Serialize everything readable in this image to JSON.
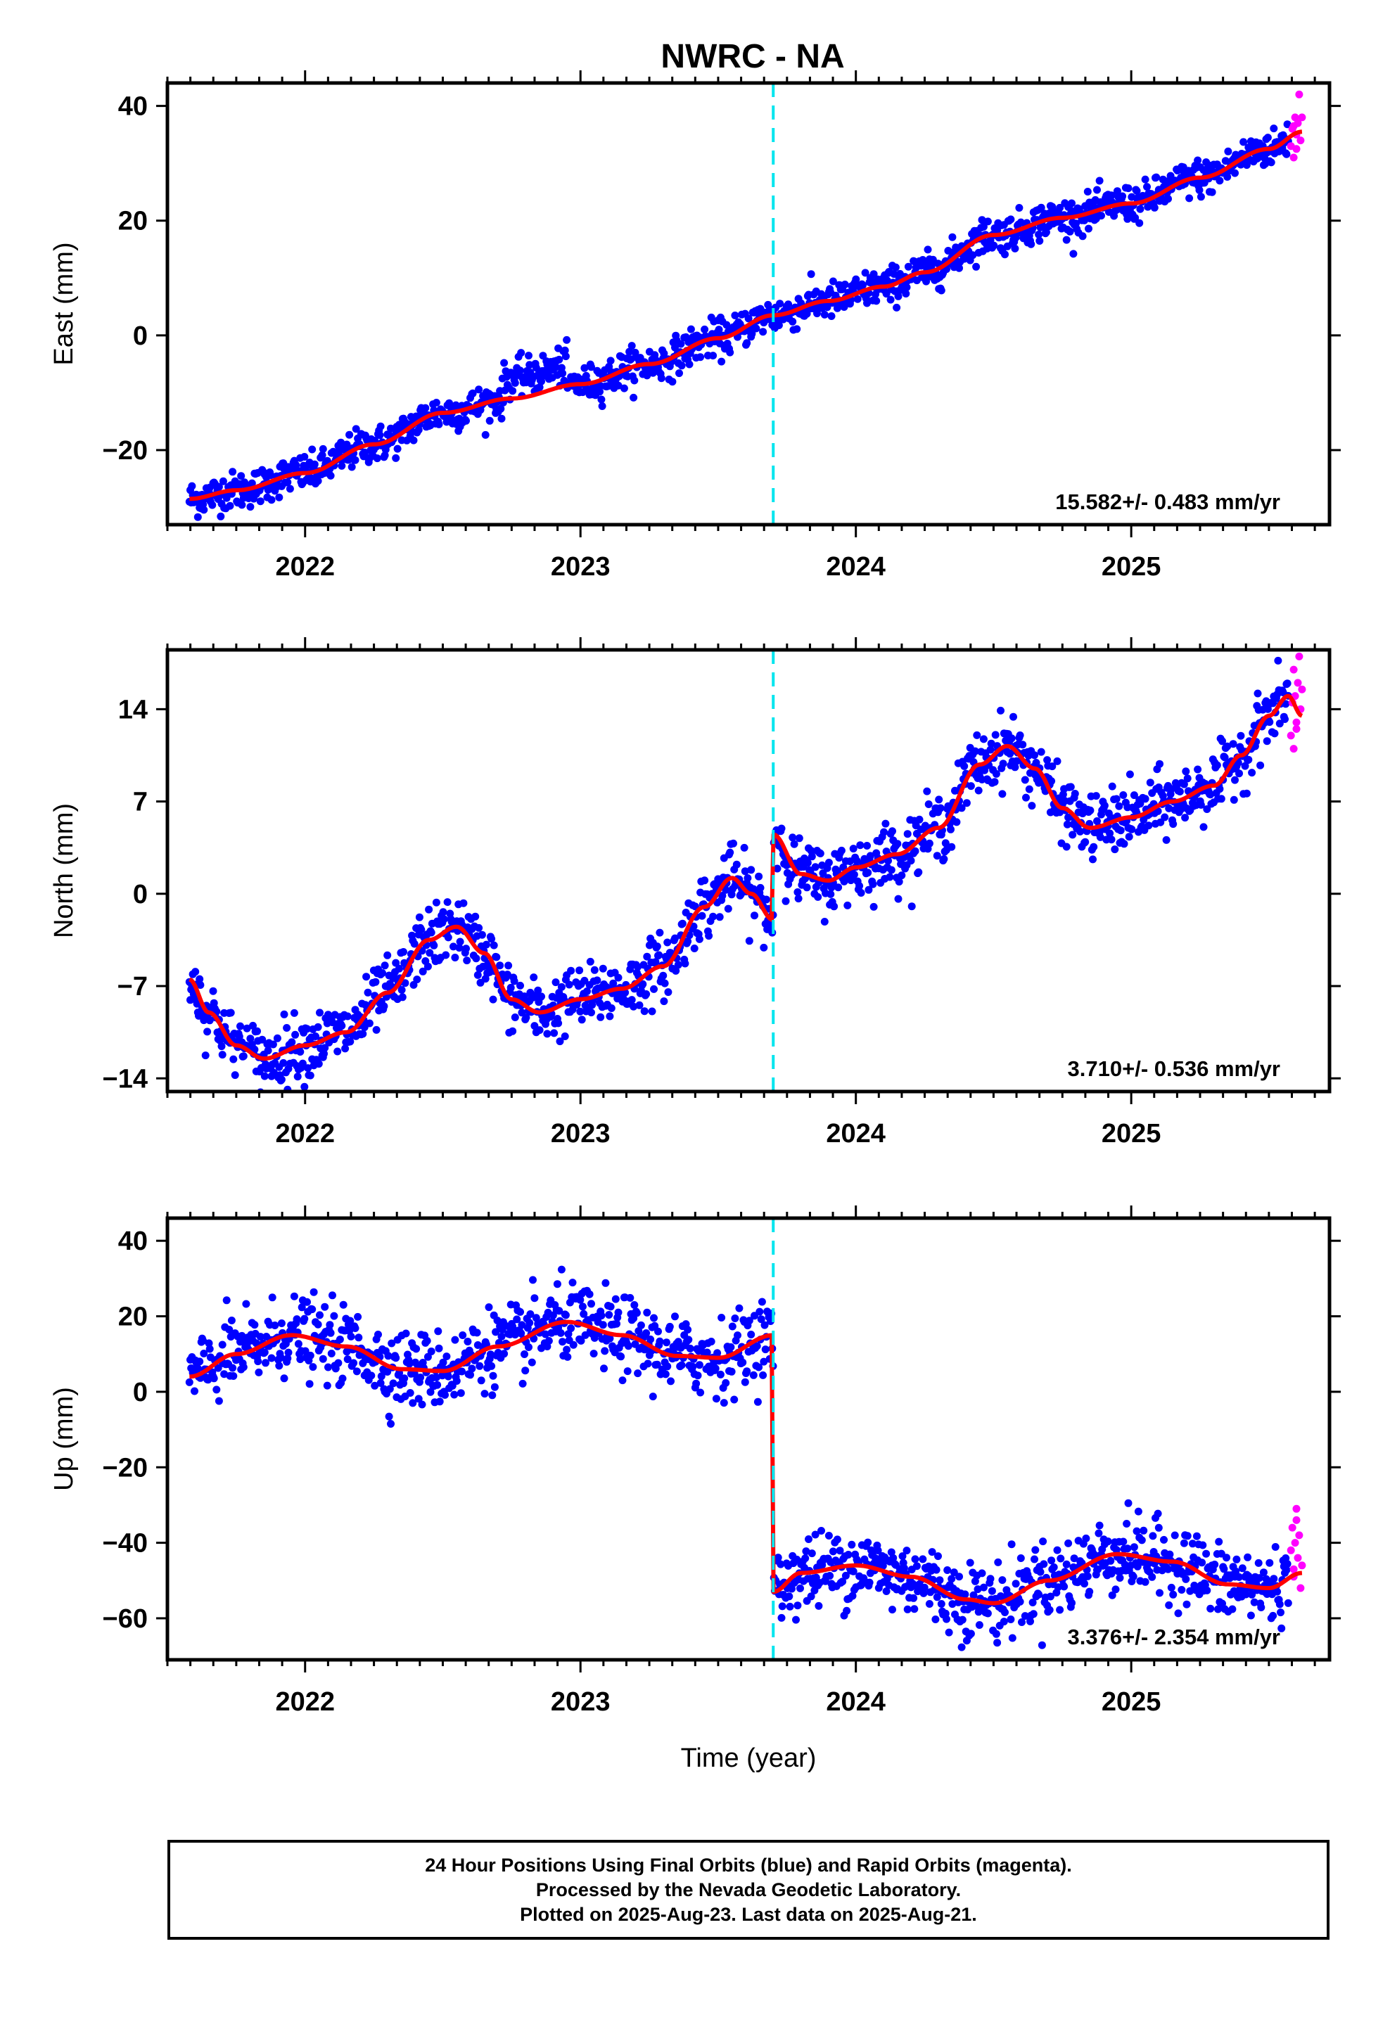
{
  "title": "NWRC - NA",
  "footer": {
    "line1": "24 Hour Positions Using Final Orbits (blue) and Rapid Orbits (magenta).",
    "line2": "Processed by the Nevada Geodetic Laboratory.",
    "line3": "Plotted on 2025-Aug-23. Last data on 2025-Aug-21."
  },
  "colors": {
    "final_orbits": "#0000ff",
    "rapid_orbits": "#ff00ff",
    "model_fit": "#ff0000",
    "equipment_change": "#00e5ee"
  },
  "chart_data": [
    {
      "type": "scatter",
      "name": "east",
      "ylabel": "East (mm)",
      "xlabel": "",
      "xlim": [
        2021.5,
        2025.72
      ],
      "ylim": [
        -33,
        44
      ],
      "xticks": [
        2022,
        2023,
        2024,
        2025
      ],
      "xtick_labels": [
        "2022",
        "2023",
        "2024",
        "2025"
      ],
      "yticks": [
        -20,
        0,
        20,
        40
      ],
      "ytick_labels": [
        "−20",
        "0",
        "20",
        "40"
      ],
      "rate_label": "15.582+/- 0.483 mm/yr",
      "equipment_change_x": 2023.7,
      "fit": {
        "x": [
          2021.58,
          2021.75,
          2022.0,
          2022.25,
          2022.5,
          2022.75,
          2023.0,
          2023.25,
          2023.5,
          2023.7,
          2023.9,
          2024.1,
          2024.25,
          2024.5,
          2024.75,
          2025.0,
          2025.25,
          2025.5,
          2025.62
        ],
        "y": [
          -28.5,
          -27,
          -24,
          -19,
          -13.5,
          -11,
          -8.5,
          -5,
          -0.5,
          3.5,
          6,
          8.5,
          11,
          17.5,
          20.5,
          23,
          27.5,
          32.5,
          35.5
        ]
      },
      "rapid": {
        "x": [
          2025.58,
          2025.585,
          2025.59,
          2025.595,
          2025.6,
          2025.605,
          2025.61,
          2025.615,
          2025.62,
          2025.6,
          2025.59
        ],
        "y": [
          33,
          36,
          31,
          38,
          35,
          37,
          42,
          34,
          38,
          32.5,
          36.5
        ]
      },
      "final": {
        "noise_mm": 1.6,
        "start": 2021.58,
        "end": 2025.57,
        "note_offset_2022_7": 4
      }
    },
    {
      "type": "scatter",
      "name": "north",
      "ylabel": "North (mm)",
      "xlabel": "",
      "xlim": [
        2021.5,
        2025.72
      ],
      "ylim": [
        -15,
        18.5
      ],
      "xticks": [
        2022,
        2023,
        2024,
        2025
      ],
      "xtick_labels": [
        "2022",
        "2023",
        "2024",
        "2025"
      ],
      "yticks": [
        -14,
        -7,
        0,
        7,
        14
      ],
      "ytick_labels": [
        "−14",
        "−7",
        "0",
        "7",
        "14"
      ],
      "rate_label": "3.710+/- 0.536 mm/yr",
      "equipment_change_x": 2023.7,
      "fit": {
        "x": [
          2021.58,
          2021.65,
          2021.75,
          2021.85,
          2022.0,
          2022.15,
          2022.3,
          2022.45,
          2022.55,
          2022.65,
          2022.75,
          2022.85,
          2023.0,
          2023.15,
          2023.3,
          2023.45,
          2023.55,
          2023.62,
          2023.7,
          2023.7,
          2023.8,
          2023.9,
          2024.0,
          2024.15,
          2024.3,
          2024.45,
          2024.55,
          2024.65,
          2024.75,
          2024.85,
          2025.0,
          2025.15,
          2025.3,
          2025.4,
          2025.5,
          2025.57,
          2025.62
        ],
        "y": [
          -6.5,
          -9,
          -11.5,
          -12.5,
          -11.5,
          -10.5,
          -7.5,
          -3.5,
          -2.5,
          -4.5,
          -8,
          -9,
          -8,
          -7.2,
          -5.5,
          -1,
          1.2,
          0,
          -2,
          4.5,
          1.5,
          1.0,
          2.0,
          3.0,
          5.0,
          9.8,
          11.2,
          9.5,
          6.5,
          5.0,
          5.8,
          7.0,
          8.2,
          10.5,
          13.5,
          15.0,
          13.5
        ]
      },
      "rapid": {
        "x": [
          2025.58,
          2025.585,
          2025.59,
          2025.595,
          2025.6,
          2025.605,
          2025.61,
          2025.615,
          2025.62,
          2025.6,
          2025.59
        ],
        "y": [
          12,
          14.5,
          17,
          15,
          13,
          16,
          18,
          14,
          15.5,
          12.5,
          11
        ]
      },
      "final": {
        "noise_mm": 1.2,
        "start": 2021.58,
        "end": 2025.57
      }
    },
    {
      "type": "scatter",
      "name": "up",
      "ylabel": "Up (mm)",
      "xlabel": "Time (year)",
      "xlim": [
        2021.5,
        2025.72
      ],
      "ylim": [
        -71,
        46
      ],
      "xticks": [
        2022,
        2023,
        2024,
        2025
      ],
      "xtick_labels": [
        "2022",
        "2023",
        "2024",
        "2025"
      ],
      "yticks": [
        -60,
        -40,
        -20,
        0,
        20,
        40
      ],
      "ytick_labels": [
        "−60",
        "−40",
        "−20",
        "0",
        "20",
        "40"
      ],
      "rate_label": "3.376+/- 2.354 mm/yr",
      "equipment_change_x": 2023.7,
      "fit": {
        "x": [
          2021.58,
          2021.75,
          2021.95,
          2022.15,
          2022.35,
          2022.5,
          2022.7,
          2022.95,
          2023.15,
          2023.35,
          2023.5,
          2023.7,
          2023.7,
          2023.8,
          2024.0,
          2024.2,
          2024.4,
          2024.5,
          2024.7,
          2024.95,
          2025.15,
          2025.35,
          2025.5,
          2025.62
        ],
        "y": [
          4,
          10,
          15,
          12,
          6,
          5.5,
          12,
          18.5,
          15,
          9.5,
          9,
          15,
          -53,
          -48,
          -46,
          -49,
          -55,
          -56,
          -50,
          -43,
          -45,
          -51,
          -52,
          -48
        ]
      },
      "rapid": {
        "x": [
          2025.58,
          2025.585,
          2025.59,
          2025.595,
          2025.6,
          2025.605,
          2025.61,
          2025.615,
          2025.62,
          2025.6,
          2025.59
        ],
        "y": [
          -42,
          -36,
          -47,
          -40,
          -31,
          -44,
          -38,
          -52,
          -46,
          -34,
          -49
        ]
      },
      "final": {
        "noise_mm": 5.0,
        "start": 2021.58,
        "end": 2025.57
      }
    }
  ]
}
